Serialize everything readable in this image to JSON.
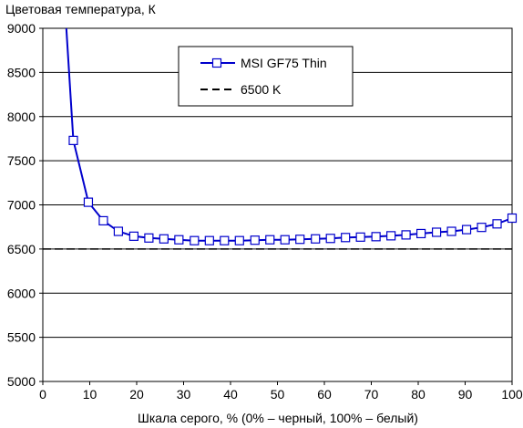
{
  "chart_data": {
    "type": "line",
    "title": "Цветовая температура, К",
    "xlabel": "Шкала серого, % (0% – черный, 100% – белый)",
    "ylabel": "",
    "xlim": [
      0,
      100
    ],
    "ylim": [
      5000,
      9000
    ],
    "xticks": [
      0,
      10,
      20,
      30,
      40,
      50,
      60,
      70,
      80,
      90,
      100
    ],
    "yticks": [
      5000,
      5500,
      6000,
      6500,
      7000,
      7500,
      8000,
      8500,
      9000
    ],
    "grid": "horizontal",
    "legend_position": "top-center",
    "series": [
      {
        "name": "MSI GF75 Thin",
        "color": "#0000cc",
        "marker": "square",
        "x": [
          5,
          6.5,
          9.7,
          12.9,
          16.1,
          19.4,
          22.6,
          25.8,
          29,
          32.3,
          35.5,
          38.7,
          41.9,
          45.2,
          48.4,
          51.6,
          54.8,
          58.1,
          61.3,
          64.5,
          67.7,
          71,
          74.2,
          77.4,
          80.6,
          83.9,
          87.1,
          90.3,
          93.5,
          96.8,
          100
        ],
        "y": [
          9000,
          7730,
          7030,
          6820,
          6700,
          6645,
          6625,
          6615,
          6605,
          6595,
          6595,
          6595,
          6595,
          6600,
          6605,
          6605,
          6610,
          6615,
          6620,
          6630,
          6635,
          6640,
          6650,
          6660,
          6675,
          6690,
          6700,
          6720,
          6745,
          6785,
          6850
        ],
        "marker_from_index": 1
      },
      {
        "name": "6500 K",
        "color": "#000000",
        "style": "dashed",
        "x": [
          0,
          100
        ],
        "y": [
          6500,
          6500
        ]
      }
    ]
  }
}
